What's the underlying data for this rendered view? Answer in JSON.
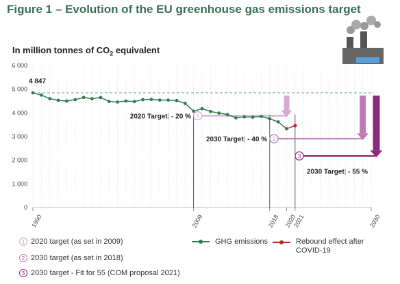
{
  "title": "Figure 1 – Evolution of the EU greenhouse gas emissions target",
  "subtitle_main": "In million tonnes of CO",
  "subtitle_sub": "2",
  "subtitle_tail": " equivalent",
  "colors": {
    "ghg": "#2e7d4a",
    "rebound": "#c0272d",
    "baseline": "#7fbf9a",
    "target2020": "#d8a8d0",
    "target2030a": "#c07ab8",
    "target2030b": "#8b2a7a",
    "title": "#3a6e55"
  },
  "annotations": {
    "peak_label": "4 847",
    "t2020_label": "2020 Target",
    "t2020_value": " - 20 %",
    "t2030a_label": "2030 Target",
    "t2030a_value": " - 40 %",
    "t2030b_label": "2030 Target",
    "t2030b_value": " - 55 %",
    "marker1": "1",
    "marker2": "2",
    "marker3": "3"
  },
  "legend": {
    "item1": "2020 target (as set in 2009)",
    "item2": "2030 target (as set in 2018)",
    "item3": "2030 target - Fit for 55 (COM proposal 2021)",
    "ghg": "GHG emissions",
    "rebound": "Rebound effect after COVID-19",
    "marker1": "1",
    "marker2": "2",
    "marker3": "3"
  },
  "chart_data": {
    "type": "line",
    "title": "Figure 1 – Evolution of the EU greenhouse gas emissions target",
    "ylabel": "In million tonnes of CO2 equivalent",
    "xlabel": "",
    "ylim": [
      0,
      6000
    ],
    "xlim": [
      1990,
      2030
    ],
    "y_ticks": [
      "0",
      "1 000",
      "2 000",
      "3 000",
      "4 000",
      "5 000",
      "6 000"
    ],
    "x_ticks": [
      "1990",
      "2009",
      "2018",
      "2020",
      "2021",
      "2030"
    ],
    "grid": "vertical dotted",
    "series": [
      {
        "name": "GHG emissions",
        "x": [
          1990,
          1991,
          1992,
          1993,
          1994,
          1995,
          1996,
          1997,
          1998,
          1999,
          2000,
          2001,
          2002,
          2003,
          2004,
          2005,
          2006,
          2007,
          2008,
          2009,
          2010,
          2011,
          2012,
          2013,
          2014,
          2015,
          2016,
          2017,
          2018,
          2019,
          2020
        ],
        "values": [
          4847,
          4750,
          4600,
          4530,
          4500,
          4560,
          4650,
          4600,
          4650,
          4480,
          4460,
          4500,
          4480,
          4560,
          4570,
          4540,
          4540,
          4520,
          4400,
          4070,
          4180,
          4060,
          3990,
          3930,
          3790,
          3830,
          3820,
          3850,
          3750,
          3620,
          3330
        ]
      },
      {
        "name": "Rebound effect after COVID-19",
        "x": [
          2020,
          2021
        ],
        "values": [
          3330,
          3460
        ]
      }
    ],
    "baseline": 4847,
    "targets": [
      {
        "label": "2020 Target",
        "value": "- 20 %",
        "level": 3878
      },
      {
        "label": "2030 Target",
        "value": "- 40 %",
        "level": 2908
      },
      {
        "label": "2030 Target",
        "value": "- 55 %",
        "level": 2181
      }
    ]
  }
}
